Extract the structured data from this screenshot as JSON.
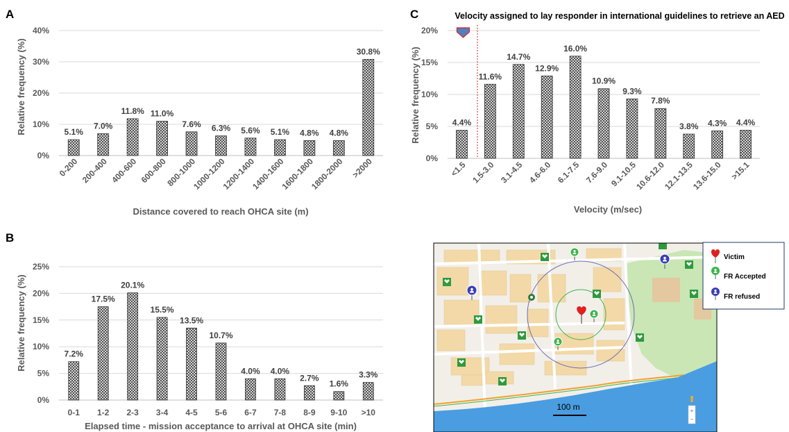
{
  "chart_data": [
    {
      "id": "A",
      "panel_label": "A",
      "type": "bar",
      "title": "",
      "xlabel": "Distance covered to reach OHCA site (m)",
      "ylabel": "Relative frequency (%)",
      "ylim": [
        0,
        40
      ],
      "yticks": [
        "0%",
        "10%",
        "20%",
        "30%",
        "40%"
      ],
      "categories": [
        "0-200",
        "200-400",
        "400-600",
        "600-800",
        "800-1000",
        "1000-1200",
        "1200-1400",
        "1400-1600",
        "1600-1800",
        "1800-2000",
        ">2000"
      ],
      "values": [
        5.1,
        7.0,
        11.8,
        11.0,
        7.6,
        6.3,
        5.6,
        5.1,
        4.8,
        4.8,
        30.8
      ],
      "data_labels": [
        "5.1%",
        "7.0%",
        "11.8%",
        "11.0%",
        "7.6%",
        "6.3%",
        "5.6%",
        "5.1%",
        "4.8%",
        "4.8%",
        "30.8%"
      ],
      "grid": true,
      "bar_pattern": "crosshatch"
    },
    {
      "id": "B",
      "panel_label": "B",
      "type": "bar",
      "title": "",
      "xlabel": "Elapsed time - mission acceptance to arrival at OHCA site (min)",
      "ylabel": "Relative frequency (%)",
      "ylim": [
        0,
        25
      ],
      "yticks": [
        "0%",
        "5%",
        "10%",
        "15%",
        "20%",
        "25%"
      ],
      "categories": [
        "0-1",
        "1-2",
        "2-3",
        "3-4",
        "4-5",
        "5-6",
        "6-7",
        "7-8",
        "8-9",
        "9-10",
        ">10"
      ],
      "values": [
        7.2,
        17.5,
        20.1,
        15.5,
        13.5,
        10.7,
        4.0,
        4.0,
        2.7,
        1.6,
        3.3
      ],
      "data_labels": [
        "7.2%",
        "17.5%",
        "20.1%",
        "15.5%",
        "13.5%",
        "10.7%",
        "4.0%",
        "4.0%",
        "2.7%",
        "1.6%",
        "3.3%"
      ],
      "grid": true,
      "bar_pattern": "crosshatch"
    },
    {
      "id": "C",
      "panel_label": "C",
      "type": "bar",
      "title": "",
      "annotation": "Velocity assigned to lay responder in international guidelines to retrieve an AED",
      "xlabel": "Velocity (m/sec)",
      "ylabel": "Relative frequency (%)",
      "ylim": [
        0,
        20
      ],
      "yticks": [
        "0%",
        "5%",
        "10%",
        "15%",
        "20%"
      ],
      "categories": [
        "<1.5",
        "1.5-3.0",
        "3.1-4.5",
        "4.6-6.0",
        "6.1-7.5",
        "7.6-9.0",
        "9.1-10.5",
        "10.6-12.0",
        "12.1-13.5",
        "13.6-15.0",
        ">15.1"
      ],
      "values": [
        4.4,
        11.6,
        14.7,
        12.9,
        16.0,
        10.9,
        9.3,
        7.8,
        3.8,
        4.3,
        4.4
      ],
      "data_labels": [
        "4.4%",
        "11.6%",
        "14.7%",
        "12.9%",
        "16.0%",
        "10.9%",
        "9.3%",
        "7.8%",
        "3.8%",
        "4.3%",
        "4.4%"
      ],
      "grid": true,
      "bar_pattern": "crosshatch",
      "reference_line_color": "#e02020",
      "arrow_color": "#4f81bd"
    }
  ],
  "map": {
    "scale_label": "100 m",
    "colors": {
      "land": "#f2efe9",
      "buildings": "#f3d9a8",
      "water": "#4a9de0",
      "park": "#c9e6b4",
      "accepted": "#3ab54a",
      "refused": "#3a3fb5",
      "victim": "#e02020",
      "aed": "#2e9a3e"
    },
    "legend": [
      {
        "label": "Victim",
        "icon": "heart-pin-icon",
        "color": "#e02020"
      },
      {
        "label": "FR Accepted",
        "icon": "person-pin-icon",
        "color": "#3ab54a"
      },
      {
        "label": "FR refused",
        "icon": "person-pin-icon",
        "color": "#3a3fb5"
      }
    ]
  }
}
